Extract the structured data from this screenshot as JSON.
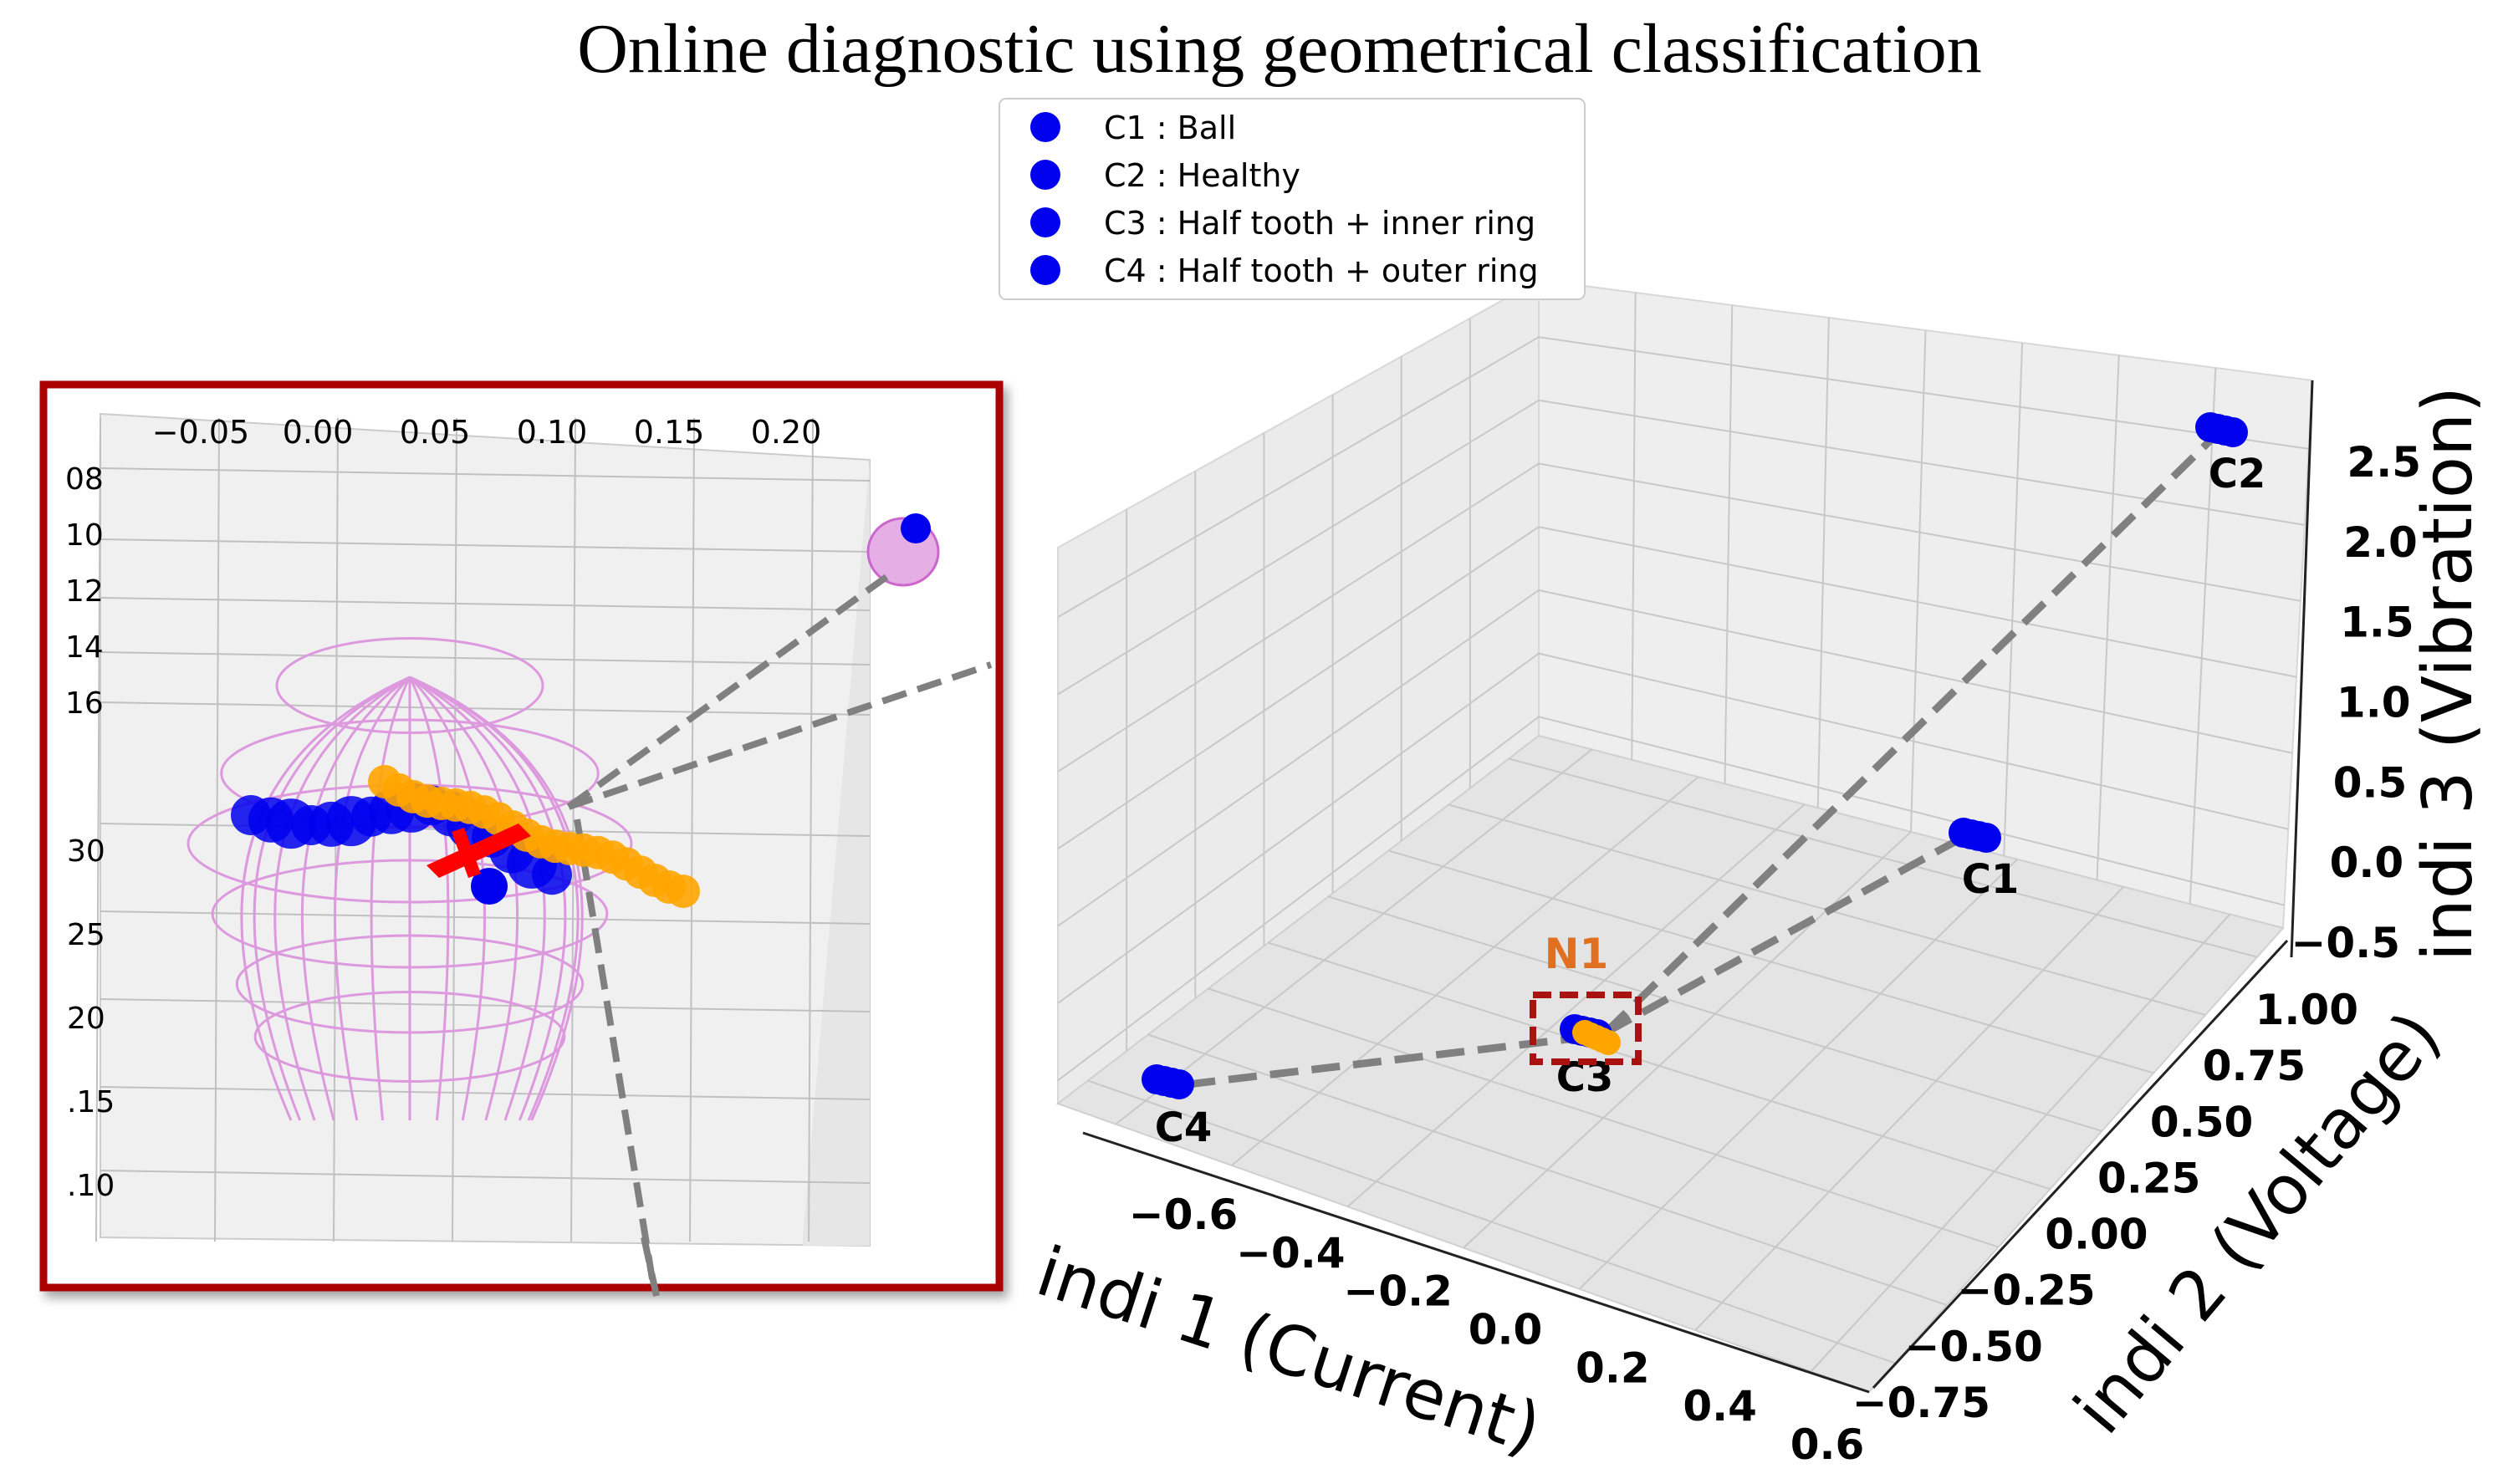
{
  "chart_data": {
    "type": "scatter",
    "title": "Online diagnostic using geometrical classification",
    "xlabel": "indi 1 (Current)",
    "ylabel": "indi 2 (Voltage)",
    "zlabel": "indi 3 (Vibration)",
    "x_ticks": [
      "−0.6",
      "−0.4",
      "−0.2",
      "0.0",
      "0.2",
      "0.4",
      "0.6"
    ],
    "y_ticks": [
      "−0.75",
      "−0.50",
      "−0.25",
      "0.00",
      "0.25",
      "0.50",
      "0.75",
      "1.00"
    ],
    "z_ticks": [
      "−0.5",
      "0.0",
      "0.5",
      "1.0",
      "1.5",
      "2.0",
      "2.5"
    ],
    "xlim": [
      -0.7,
      0.6
    ],
    "ylim": [
      -0.75,
      1.0
    ],
    "zlim": [
      -0.5,
      2.9
    ],
    "legend": {
      "position": "top-center",
      "color": "#0000ee",
      "entries": [
        "C1 : Ball",
        "C2 : Healthy",
        "C3 : Half tooth + inner ring",
        "C4 : Half tooth + outer ring"
      ]
    },
    "clusters": [
      {
        "label": "C1",
        "x": 0.35,
        "y": 0.3,
        "z": 0.3,
        "color": "#0000ee"
      },
      {
        "label": "C2",
        "x": 0.45,
        "y": 0.9,
        "z": 2.75,
        "color": "#0000ee"
      },
      {
        "label": "C3",
        "x": -0.05,
        "y": 0.0,
        "z": -0.3,
        "color": "#0000ee"
      },
      {
        "label": "C4",
        "x": -0.62,
        "y": 0.0,
        "z": -0.4,
        "color": "#0000ee"
      }
    ],
    "new_point": {
      "label": "N1",
      "color": "#ffa500",
      "label_color": "#e07020"
    },
    "grid": true,
    "inset": {
      "x_ticks": [
        "−0.05",
        "0.00",
        "0.05",
        "0.10",
        "0.15",
        "0.20"
      ],
      "left_ticks_top": [
        "08",
        "10",
        "12",
        "14",
        "16"
      ],
      "left_ticks_bottom": [
        "30",
        "25",
        "20",
        ".15",
        ".10"
      ],
      "sphere_color": "#dd99dd",
      "nearest_marker_color": "#ff0000",
      "border_color": "#aa0000"
    }
  }
}
